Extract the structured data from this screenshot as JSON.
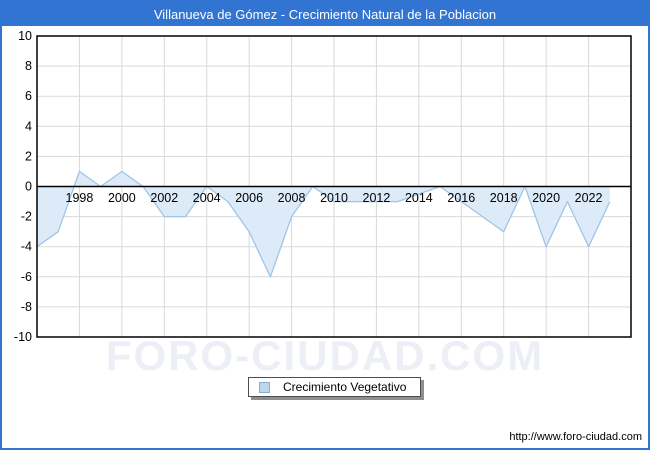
{
  "window": {
    "title": "Villanueva de Gómez - Crecimiento Natural de la Poblacion"
  },
  "legend": {
    "label": "Crecimiento Vegetativo",
    "swatch_color": "#bdd7ee",
    "swatch_border": "#85aed4"
  },
  "watermark": "FORO-CIUDAD.COM",
  "footer": {
    "url": "http://www.foro-ciudad.com"
  },
  "colors": {
    "titlebar": "#3274d2",
    "frame_border": "#3274d2"
  },
  "chart_data": {
    "type": "area",
    "title": "Villanueva de Gómez - Crecimiento Natural de la Poblacion",
    "series": [
      {
        "name": "Crecimiento Vegetativo",
        "values": [
          -4,
          -3,
          1,
          0,
          1,
          0,
          -2,
          -2,
          0,
          -1,
          -3,
          -6,
          -2,
          0,
          -1,
          -1,
          -1,
          -1,
          -0.5,
          0,
          -1,
          -2,
          -3,
          0,
          -4,
          -1,
          -4,
          -1
        ]
      }
    ],
    "x": [
      1996,
      1997,
      1998,
      1999,
      2000,
      2001,
      2002,
      2003,
      2004,
      2005,
      2006,
      2007,
      2008,
      2009,
      2010,
      2011,
      2012,
      2013,
      2014,
      2015,
      2016,
      2017,
      2018,
      2019,
      2020,
      2021,
      2022,
      2023
    ],
    "xlim": [
      1996,
      2024
    ],
    "ylim": [
      -10,
      10
    ],
    "yticks": [
      10,
      8,
      6,
      4,
      2,
      0,
      -2,
      -4,
      -6,
      -8,
      -10
    ],
    "xticks": [
      1998,
      2000,
      2002,
      2004,
      2006,
      2008,
      2010,
      2012,
      2014,
      2016,
      2018,
      2020,
      2022
    ],
    "xlabel": "",
    "ylabel": "",
    "grid": true,
    "baseline": 0,
    "legend_position": "bottom-center",
    "colors": {
      "line": "#9fc5e8",
      "fill": "#ddeaf8",
      "grid": "#d9d9d9",
      "axis": "#000000"
    }
  }
}
